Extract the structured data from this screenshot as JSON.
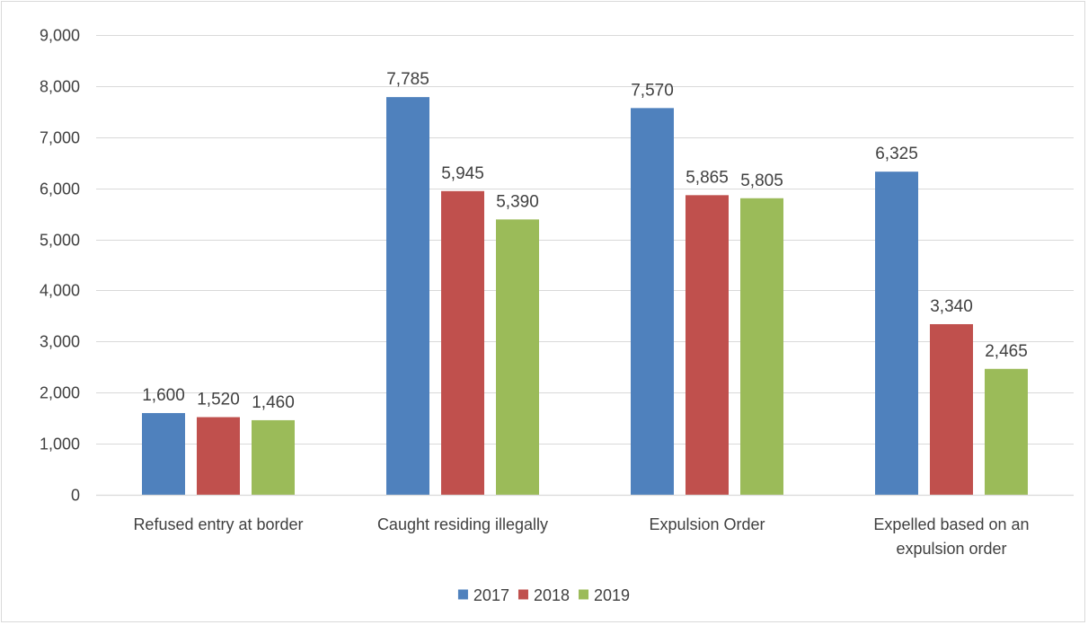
{
  "chart_data": {
    "type": "bar",
    "title": "",
    "xlabel": "",
    "ylabel": "",
    "categories": [
      [
        "Refused entry at border"
      ],
      [
        "Caught residing illegally"
      ],
      [
        "Expulsion Order"
      ],
      [
        "Expelled based on an",
        "expulsion order"
      ]
    ],
    "series": [
      {
        "name": "2017",
        "color": "#4f81bd",
        "values": [
          1600,
          7785,
          7570,
          6325
        ],
        "labels": [
          "1,600",
          "7,785",
          "7,570",
          "6,325"
        ]
      },
      {
        "name": "2018",
        "color": "#c0504d",
        "values": [
          1520,
          5945,
          5865,
          3340
        ],
        "labels": [
          "1,520",
          "5,945",
          "5,865",
          "3,340"
        ]
      },
      {
        "name": "2019",
        "color": "#9bbb59",
        "values": [
          1460,
          5390,
          5805,
          2465
        ],
        "labels": [
          "1,460",
          "5,390",
          "5,805",
          "2,465"
        ]
      }
    ],
    "ylim": [
      0,
      9000
    ],
    "yticks": [
      0,
      1000,
      2000,
      3000,
      4000,
      5000,
      6000,
      7000,
      8000,
      9000
    ],
    "ytick_labels": [
      "0",
      "1,000",
      "2,000",
      "3,000",
      "4,000",
      "5,000",
      "6,000",
      "7,000",
      "8,000",
      "9,000"
    ],
    "grid": true,
    "legend_position": "bottom",
    "gridline_color": "#d9d9d9",
    "text_color": "#404040"
  }
}
